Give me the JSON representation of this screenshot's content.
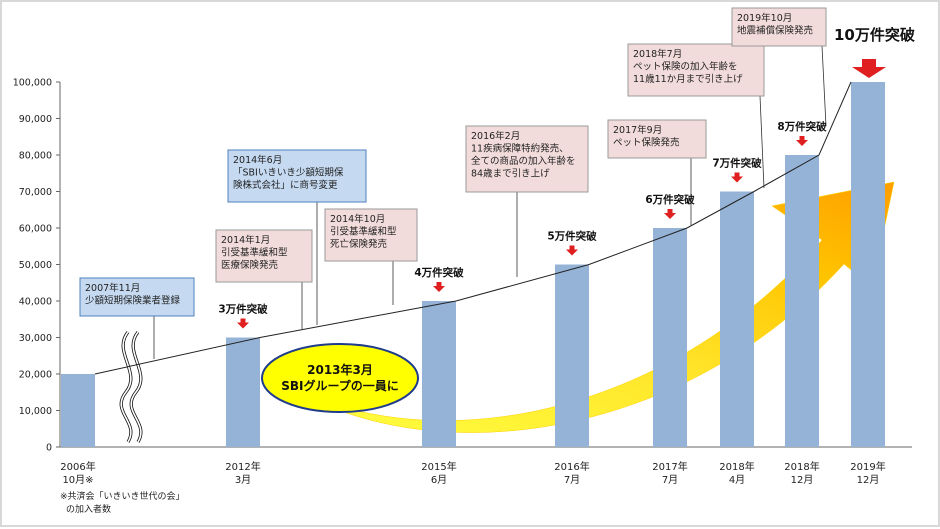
{
  "chart_data": {
    "type": "bar",
    "categories": [
      "2006年10月※",
      "2012年3月",
      "2015年6月",
      "2016年7月",
      "2017年7月",
      "2018年4月",
      "2018年12月",
      "2019年12月"
    ],
    "x_labels": [
      [
        "2006年",
        "10月※"
      ],
      [
        "2012年",
        "3月"
      ],
      [
        "2015年",
        "6月"
      ],
      [
        "2016年",
        "7月"
      ],
      [
        "2017年",
        "7月"
      ],
      [
        "2018年",
        "4月"
      ],
      [
        "2018年",
        "12月"
      ],
      [
        "2019年",
        "12月"
      ]
    ],
    "values": [
      20000,
      30000,
      40000,
      50000,
      60000,
      70000,
      80000,
      100000
    ],
    "ylim": [
      0,
      100000
    ],
    "yticks": [
      "0",
      "10,000",
      "20,000",
      "30,000",
      "40,000",
      "50,000",
      "60,000",
      "70,000",
      "80,000",
      "90,000",
      "100,000"
    ],
    "milestones": [
      "",
      "3万件突破",
      "4万件突破",
      "5万件突破",
      "6万件突破",
      "7万件突破",
      "8万件突破",
      ""
    ],
    "bar_color": "#95b3d7",
    "grid": false
  },
  "callouts": [
    {
      "lines": [
        "2007年11月",
        "少額短期保険業者登録"
      ],
      "color": "blue"
    },
    {
      "lines": [
        "2014年1月",
        "引受基準緩和型",
        "医療保険発売"
      ],
      "color": "pink"
    },
    {
      "lines": [
        "2014年6月",
        "「SBIいきいき少額短期保",
        "険株式会社」に商号変更"
      ],
      "color": "blue"
    },
    {
      "lines": [
        "2014年10月",
        "引受基準緩和型",
        "死亡保険発売"
      ],
      "color": "pink"
    },
    {
      "lines": [
        "2016年2月",
        "11疾病保障特約発売、",
        "全ての商品の加入年齢を",
        "84歳まで引き上げ"
      ],
      "color": "pink"
    },
    {
      "lines": [
        "2017年9月",
        "ペット保険発売"
      ],
      "color": "pink"
    },
    {
      "lines": [
        "2018年7月",
        "ペット保険の加入年齢を",
        "11歳11か月まで引き上げ"
      ],
      "color": "pink"
    },
    {
      "lines": [
        "2019年10月",
        "地震補償保険発売"
      ],
      "color": "pink"
    }
  ],
  "oval": {
    "line1": "2013年3月",
    "line2": "SBIグループの一員に"
  },
  "highlight": {
    "label": "10万件突破"
  },
  "footnote": {
    "line1": "※共済会「いきいき世代の会」",
    "line2": "の加入者数"
  },
  "colors": {
    "callout_blue_fill": "#c5d9f1",
    "callout_blue_border": "#4f81bd",
    "callout_pink_fill": "#f2dcdb",
    "callout_pink_border": "#999999",
    "milestone_arrow": "#e02020"
  }
}
